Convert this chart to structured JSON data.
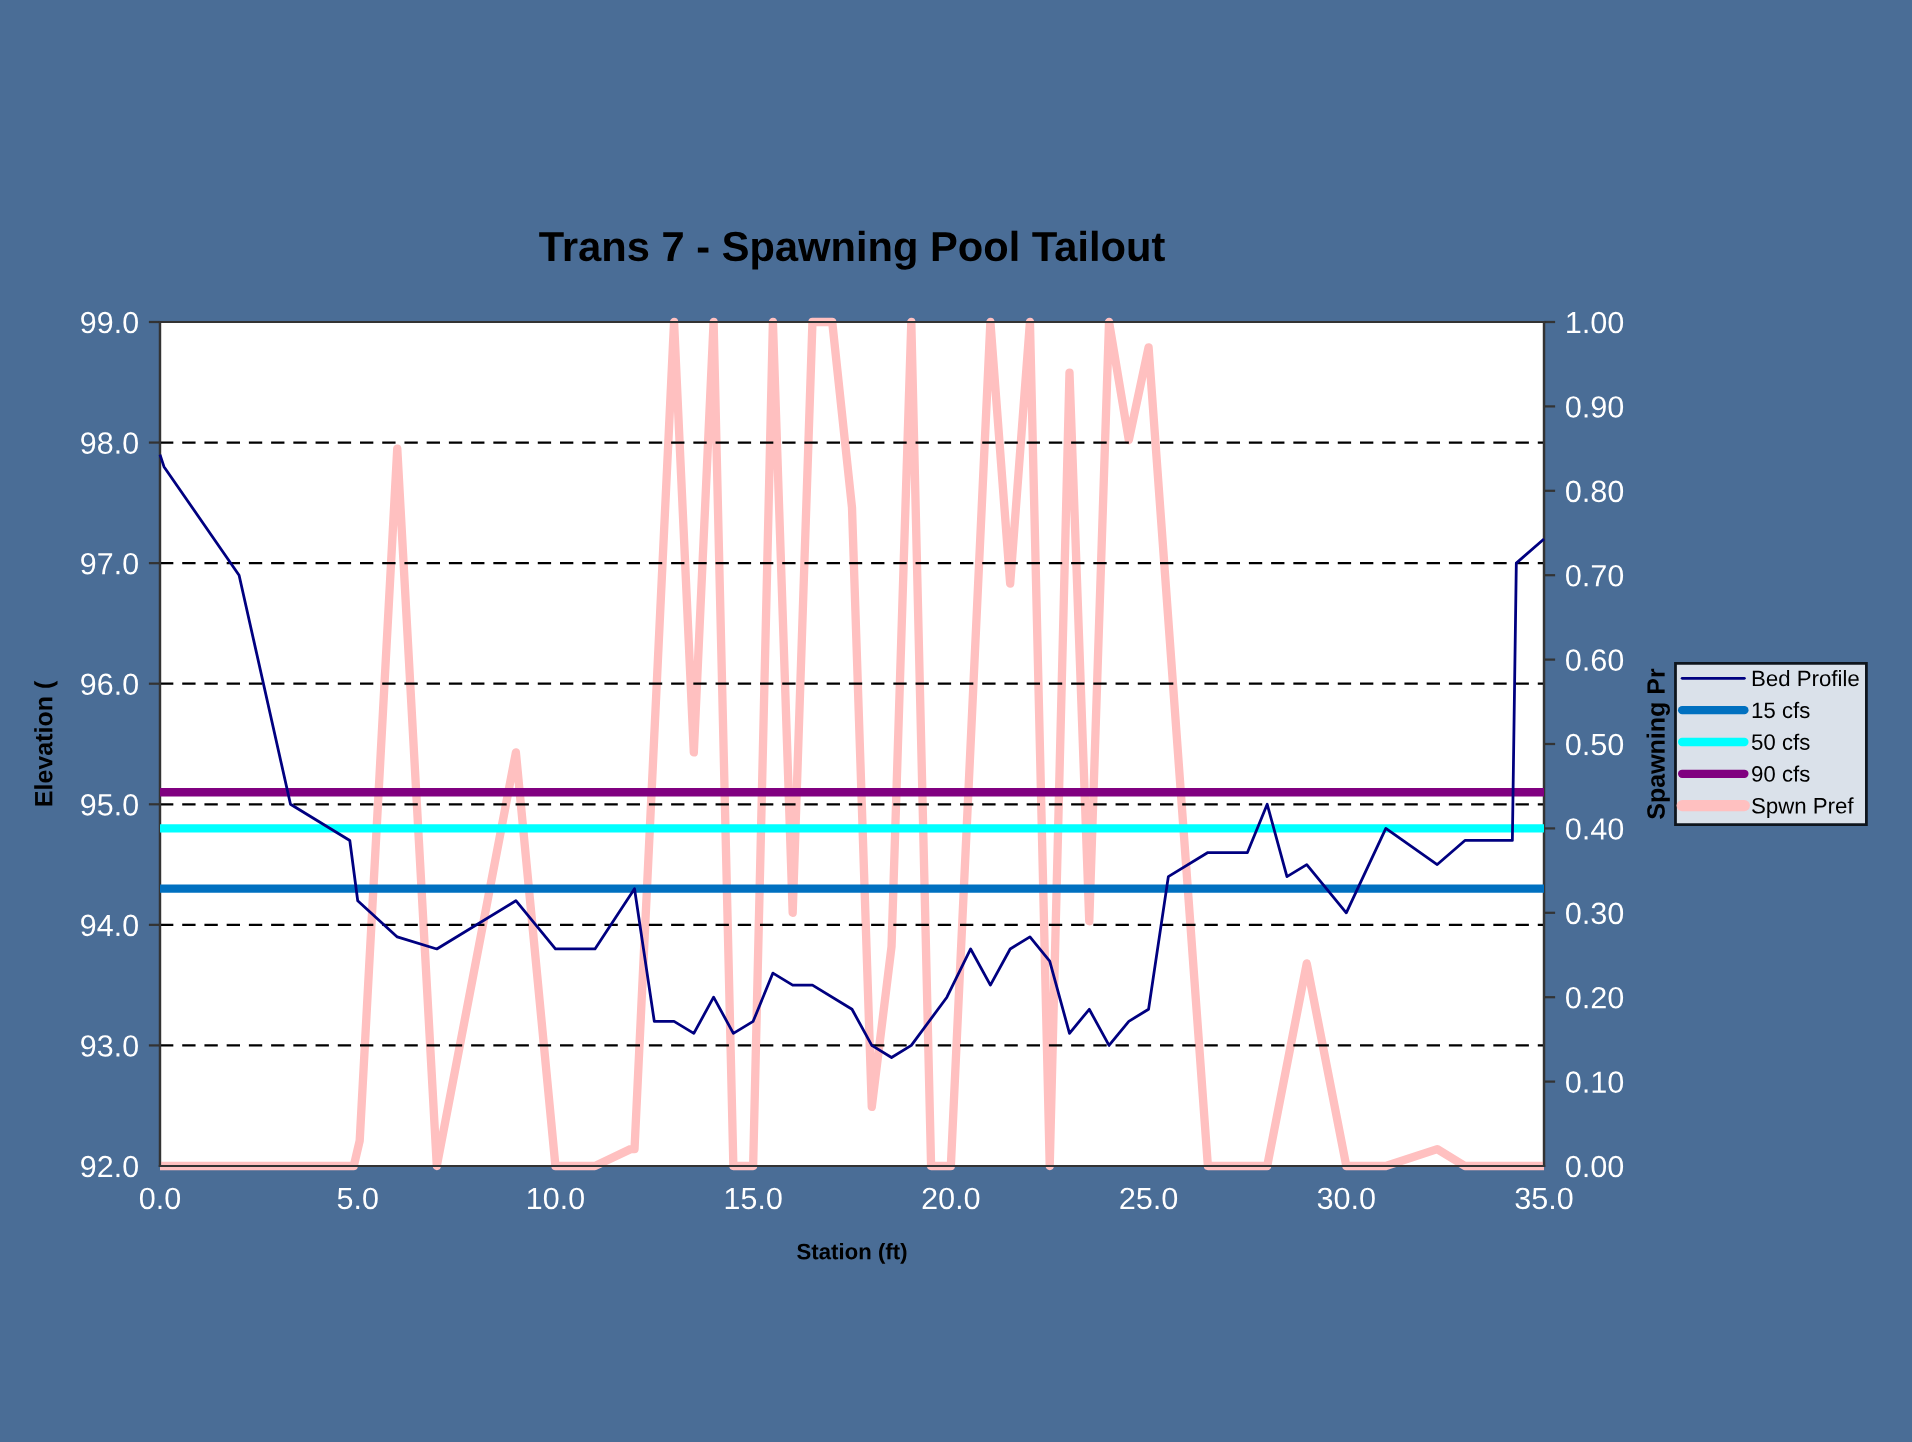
{
  "chart_data": {
    "type": "line",
    "title": "Trans 7 - Spawning Pool Tailout",
    "xlabel": "Station (ft)",
    "ylabel": "Elevation (",
    "y2label": "Spawning Pr",
    "xlim": [
      0,
      35
    ],
    "xticks": [
      {
        "value": 0,
        "label": "0.0"
      },
      {
        "value": 5,
        "label": "5.0"
      },
      {
        "value": 10,
        "label": "10.0"
      },
      {
        "value": 15,
        "label": "15.0"
      },
      {
        "value": 20,
        "label": "20.0"
      },
      {
        "value": 25,
        "label": "25.0"
      },
      {
        "value": 30,
        "label": "30.0"
      },
      {
        "value": 35,
        "label": "35.0"
      }
    ],
    "ylim": [
      92,
      99
    ],
    "yticks": [
      {
        "value": 92,
        "label": "92.0"
      },
      {
        "value": 93,
        "label": "93.0"
      },
      {
        "value": 94,
        "label": "94.0"
      },
      {
        "value": 95,
        "label": "95.0"
      },
      {
        "value": 96,
        "label": "96.0"
      },
      {
        "value": 97,
        "label": "97.0"
      },
      {
        "value": 98,
        "label": "98.0"
      },
      {
        "value": 99,
        "label": "99.0"
      }
    ],
    "y2lim": [
      0,
      1
    ],
    "y2ticks": [
      {
        "value": 0,
        "label": "0.00"
      },
      {
        "value": 0.1,
        "label": "0.10"
      },
      {
        "value": 0.2,
        "label": "0.20"
      },
      {
        "value": 0.3,
        "label": "0.30"
      },
      {
        "value": 0.4,
        "label": "0.40"
      },
      {
        "value": 0.5,
        "label": "0.50"
      },
      {
        "value": 0.6,
        "label": "0.60"
      },
      {
        "value": 0.7,
        "label": "0.70"
      },
      {
        "value": 0.8,
        "label": "0.80"
      },
      {
        "value": 0.9,
        "label": "0.90"
      },
      {
        "value": 1,
        "label": "1.00"
      }
    ],
    "grid": "y",
    "legend": "right",
    "marker": "none",
    "series": [
      {
        "name": "Bed Profile",
        "color": "#000080",
        "x": [
          0,
          0.1,
          2.0,
          3.3,
          4.8,
          5.0,
          6.0,
          7.0,
          9.0,
          10.0,
          11.0,
          12.0,
          12.5,
          13.0,
          13.5,
          14.0,
          14.5,
          15.0,
          15.5,
          16.0,
          16.5,
          17.5,
          18.0,
          18.5,
          19.0,
          19.9,
          20.5,
          21.0,
          21.5,
          22.0,
          22.5,
          23.0,
          23.5,
          24.0,
          24.5,
          25.0,
          25.5,
          26.5,
          27.5,
          28.0,
          28.5,
          29.0,
          30.0,
          31.0,
          32.3,
          33.0,
          34.2,
          34.3,
          35.0
        ],
        "values": [
          97.9,
          97.8,
          96.9,
          95.0,
          94.7,
          94.2,
          93.9,
          93.8,
          94.2,
          93.8,
          93.8,
          94.3,
          93.2,
          93.2,
          93.1,
          93.4,
          93.1,
          93.2,
          93.6,
          93.5,
          93.5,
          93.3,
          93.0,
          92.9,
          93.0,
          93.4,
          93.8,
          93.5,
          93.8,
          93.9,
          93.7,
          93.1,
          93.3,
          93.0,
          93.2,
          93.3,
          94.4,
          94.6,
          94.6,
          95.0,
          94.4,
          94.5,
          94.1,
          94.8,
          94.5,
          94.7,
          94.7,
          97.0,
          97.2
        ]
      },
      {
        "name": "15 cfs",
        "color": "#0070c0",
        "x": [
          0,
          35
        ],
        "values": [
          94.3,
          94.3
        ]
      },
      {
        "name": "50 cfs",
        "color": "#00ffff",
        "x": [
          0,
          35
        ],
        "values": [
          94.8,
          94.8
        ]
      },
      {
        "name": "90 cfs",
        "color": "#800080",
        "x": [
          0,
          35
        ],
        "values": [
          95.1,
          95.1
        ]
      },
      {
        "name": "Spwn Pref",
        "color": "#ffc0c0",
        "axis": "y2",
        "x": [
          0,
          4.9,
          5.05,
          6.0,
          7.0,
          9.0,
          10.0,
          11.0,
          11.9,
          12.0,
          13.0,
          13.5,
          14.0,
          14.5,
          15.0,
          15.5,
          16.0,
          16.5,
          17.0,
          17.5,
          18.0,
          18.5,
          19.0,
          19.5,
          20.0,
          21.0,
          21.5,
          22.0,
          22.5,
          23.0,
          23.5,
          24.0,
          24.5,
          25.0,
          26.5,
          28.0,
          29.0,
          30.0,
          31.0,
          32.3,
          33.0,
          35.0
        ],
        "values": [
          0,
          0,
          0.03,
          0.85,
          0,
          0.49,
          0,
          0,
          0.02,
          0.02,
          1.0,
          0.49,
          1.0,
          0,
          0,
          1.0,
          0.3,
          1.0,
          1.0,
          0.78,
          0.07,
          0.26,
          1.0,
          0,
          0,
          1.0,
          0.69,
          1.0,
          0,
          0.94,
          0.29,
          1.0,
          0.86,
          0.97,
          0,
          0,
          0.24,
          0,
          0,
          0.02,
          0,
          0
        ]
      }
    ]
  }
}
